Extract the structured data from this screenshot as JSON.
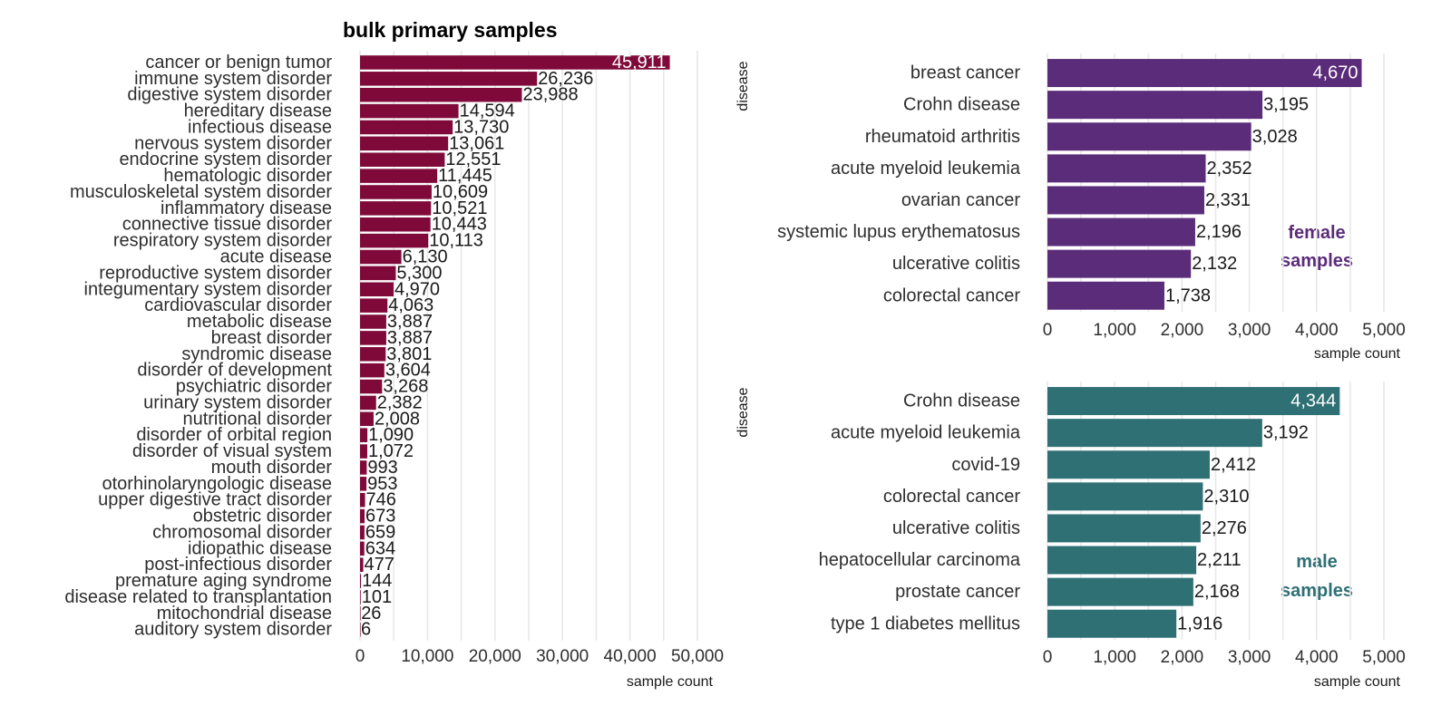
{
  "chart_data": [
    {
      "type": "bar",
      "orientation": "horizontal",
      "title": "bulk primary samples",
      "xlabel": "sample count",
      "ylabel": "",
      "xlim": [
        0,
        50000
      ],
      "xticks": [
        "0",
        "10,000",
        "20,000",
        "30,000",
        "40,000",
        "50,000"
      ],
      "grid": true,
      "color": "#7f0a3a",
      "categories": [
        "cancer or benign tumor",
        "immune system disorder",
        "digestive system disorder",
        "hereditary disease",
        "infectious disease",
        "nervous system disorder",
        "endocrine system disorder",
        "hematologic disorder",
        "musculoskeletal system disorder",
        "inflammatory disease",
        "connective tissue disorder",
        "respiratory system disorder",
        "acute disease",
        "reproductive system disorder",
        "integumentary system disorder",
        "cardiovascular disorder",
        "metabolic disease",
        "breast disorder",
        "syndromic disease",
        "disorder of development",
        "psychiatric disorder",
        "urinary system disorder",
        "nutritional disorder",
        "disorder of orbital region",
        "disorder of visual system",
        "mouth disorder",
        "otorhinolaryngologic disease",
        "upper digestive tract disorder",
        "obstetric disorder",
        "chromosomal disorder",
        "idiopathic disease",
        "post-infectious disorder",
        "premature aging syndrome",
        "disease related to transplantation",
        "mitochondrial disease",
        "auditory system disorder"
      ],
      "values": [
        45911,
        26236,
        23988,
        14594,
        13730,
        13061,
        12551,
        11445,
        10609,
        10521,
        10443,
        10113,
        6130,
        5300,
        4970,
        4063,
        3887,
        3887,
        3801,
        3604,
        3268,
        2382,
        2008,
        1090,
        1072,
        993,
        953,
        746,
        673,
        659,
        634,
        477,
        144,
        101,
        26,
        6
      ],
      "value_labels": [
        "45,911",
        "26,236",
        "23,988",
        "14,594",
        "13,730",
        "13,061",
        "12,551",
        "11,445",
        "10,609",
        "10,521",
        "10,443",
        "10,113",
        "6,130",
        "5,300",
        "4,970",
        "4,063",
        "3,887",
        "3,887",
        "3,801",
        "3,604",
        "3,268",
        "2,382",
        "2,008",
        "1,090",
        "1,072",
        "993",
        "953",
        "746",
        "673",
        "659",
        "634",
        "477",
        "144",
        "101",
        "26",
        "6"
      ]
    },
    {
      "type": "bar",
      "orientation": "horizontal",
      "title": "",
      "annotation": [
        "female",
        "samples"
      ],
      "xlabel": "sample count",
      "ylabel": "disease",
      "xlim": [
        0,
        5000
      ],
      "xticks": [
        "0",
        "1,000",
        "2,000",
        "3,000",
        "4,000",
        "5,000"
      ],
      "grid": true,
      "color": "#5b2c7a",
      "categories": [
        "breast cancer",
        "Crohn disease",
        "rheumatoid arthritis",
        "acute myeloid leukemia",
        "ovarian cancer",
        "systemic lupus erythematosus",
        "ulcerative colitis",
        "colorectal cancer"
      ],
      "values": [
        4670,
        3195,
        3028,
        2352,
        2331,
        2196,
        2132,
        1738
      ],
      "value_labels": [
        "4,670",
        "3,195",
        "3,028",
        "2,352",
        "2,331",
        "2,196",
        "2,132",
        "1,738"
      ]
    },
    {
      "type": "bar",
      "orientation": "horizontal",
      "title": "",
      "annotation": [
        "male",
        "samples"
      ],
      "xlabel": "sample count",
      "ylabel": "disease",
      "xlim": [
        0,
        5000
      ],
      "xticks": [
        "0",
        "1,000",
        "2,000",
        "3,000",
        "4,000",
        "5,000"
      ],
      "grid": true,
      "color": "#2f7075",
      "categories": [
        "Crohn disease",
        "acute myeloid leukemia",
        "covid-19",
        "colorectal cancer",
        "ulcerative colitis",
        "hepatocellular carcinoma",
        "prostate cancer",
        "type 1 diabetes mellitus"
      ],
      "values": [
        4344,
        3192,
        2412,
        2310,
        2276,
        2211,
        2168,
        1916
      ],
      "value_labels": [
        "4,344",
        "3,192",
        "2,412",
        "2,310",
        "2,276",
        "2,211",
        "2,168",
        "1,916"
      ]
    }
  ]
}
